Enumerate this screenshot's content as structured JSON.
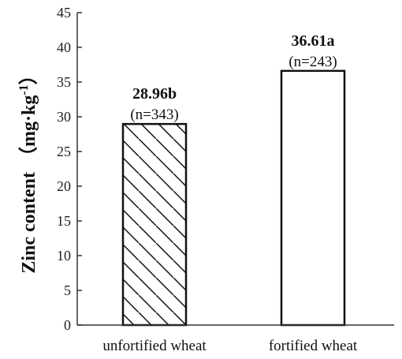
{
  "chart_data": {
    "type": "bar",
    "categories": [
      "unfortified wheat",
      "fortified wheat"
    ],
    "values": [
      28.96,
      36.61
    ],
    "value_labels": [
      "28.96b",
      "36.61a"
    ],
    "sample_sizes": [
      "(n=343)",
      "(n=243)"
    ],
    "bar_fills": [
      "diagonal-hatch",
      "none"
    ],
    "ylabel": "Zinc content",
    "ylabel_unit_open": "（mg·kg",
    "ylabel_unit_sup": "-1",
    "ylabel_unit_close": "）",
    "xlabel": "",
    "ylim": [
      0,
      45
    ],
    "yticks": [
      0,
      5,
      10,
      15,
      20,
      25,
      30,
      35,
      40,
      45
    ],
    "grid": false,
    "colors": {
      "axis": "#333333",
      "bar_stroke": "#111111",
      "hatch": "#111111"
    }
  }
}
